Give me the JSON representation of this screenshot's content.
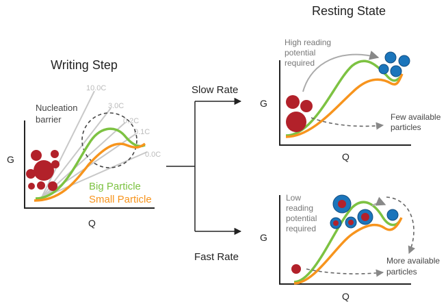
{
  "colors": {
    "big_particle": "#7dc242",
    "small_particle": "#f7941d",
    "particle_red": "#b2212a",
    "particle_blue": "#1b75bb",
    "rate_lines": "#c8c8c8",
    "arrow_gray": "#888888",
    "axis": "#222222"
  },
  "titles": {
    "writing_step": "Writing Step",
    "resting_state": "Resting State"
  },
  "writing": {
    "nucleation_label_1": "Nucleation",
    "nucleation_label_2": "barrier",
    "rates": [
      "10.0C",
      "3.0C",
      "0.2C",
      "0.1C",
      "0.0C"
    ],
    "legend_big": "Big Particle",
    "legend_small": "Small Particle",
    "axis_y": "G",
    "axis_x": "Q"
  },
  "branches": {
    "slow": "Slow Rate",
    "fast": "Fast Rate"
  },
  "slow_panel": {
    "note_1": "High reading",
    "note_2": "potential",
    "note_3": "required",
    "side_1": "Few available",
    "side_2": "particles",
    "axis_y": "G",
    "axis_x": "Q"
  },
  "fast_panel": {
    "note_1": "Low",
    "note_2": "reading",
    "note_3": "potential",
    "note_4": "required",
    "side_1": "More available",
    "side_2": "particles",
    "axis_y": "G",
    "axis_x": "Q"
  }
}
